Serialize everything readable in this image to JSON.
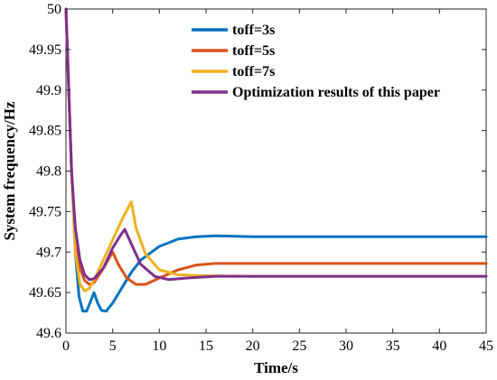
{
  "chart_data": {
    "type": "line",
    "title": "",
    "xlabel": "Time/s",
    "ylabel": "System frequency/Hz",
    "xlim": [
      0,
      45
    ],
    "ylim": [
      49.6,
      50
    ],
    "xticks": [
      0,
      5,
      10,
      15,
      20,
      25,
      30,
      35,
      40,
      45
    ],
    "yticks": [
      49.6,
      49.65,
      49.7,
      49.75,
      49.8,
      49.85,
      49.9,
      49.95,
      50
    ],
    "xtick_labels": [
      "0",
      "5",
      "10",
      "15",
      "20",
      "25",
      "30",
      "35",
      "40",
      "45"
    ],
    "ytick_labels": [
      "49.6",
      "49.65",
      "49.7",
      "49.75",
      "49.8",
      "49.85",
      "49.9",
      "49.95",
      "50"
    ],
    "grid": false,
    "legend_position": "top-right",
    "series": [
      {
        "name": "toff=3s",
        "color": "#0072BD",
        "points": [
          [
            0,
            50
          ],
          [
            0.3,
            49.9
          ],
          [
            0.6,
            49.8
          ],
          [
            1.0,
            49.7
          ],
          [
            1.4,
            49.645
          ],
          [
            1.8,
            49.627
          ],
          [
            2.2,
            49.627
          ],
          [
            2.6,
            49.638
          ],
          [
            3.0,
            49.65
          ],
          [
            3.4,
            49.637
          ],
          [
            3.8,
            49.628
          ],
          [
            4.3,
            49.627
          ],
          [
            5,
            49.637
          ],
          [
            6,
            49.656
          ],
          [
            7,
            49.675
          ],
          [
            8,
            49.69
          ],
          [
            10,
            49.707
          ],
          [
            12,
            49.716
          ],
          [
            14,
            49.719
          ],
          [
            16,
            49.72
          ],
          [
            20,
            49.719
          ],
          [
            30,
            49.719
          ],
          [
            45,
            49.719
          ]
        ]
      },
      {
        "name": "toff=5s",
        "color": "#D95319",
        "points": [
          [
            0,
            50
          ],
          [
            0.3,
            49.9
          ],
          [
            0.6,
            49.8
          ],
          [
            1.0,
            49.72
          ],
          [
            1.5,
            49.68
          ],
          [
            2.0,
            49.665
          ],
          [
            2.5,
            49.66
          ],
          [
            3.0,
            49.662
          ],
          [
            4.0,
            49.68
          ],
          [
            5.0,
            49.7
          ],
          [
            5.6,
            49.685
          ],
          [
            6.5,
            49.668
          ],
          [
            7.5,
            49.66
          ],
          [
            8.5,
            49.66
          ],
          [
            10,
            49.668
          ],
          [
            12,
            49.678
          ],
          [
            14,
            49.684
          ],
          [
            16,
            49.686
          ],
          [
            20,
            49.686
          ],
          [
            30,
            49.686
          ],
          [
            45,
            49.686
          ]
        ]
      },
      {
        "name": "toff=7s",
        "color": "#EDB120",
        "points": [
          [
            0,
            50
          ],
          [
            0.3,
            49.9
          ],
          [
            0.6,
            49.8
          ],
          [
            1.0,
            49.7
          ],
          [
            1.5,
            49.66
          ],
          [
            2.0,
            49.652
          ],
          [
            2.5,
            49.655
          ],
          [
            3.0,
            49.665
          ],
          [
            4.0,
            49.69
          ],
          [
            5.0,
            49.715
          ],
          [
            6.0,
            49.74
          ],
          [
            7.0,
            49.762
          ],
          [
            7.5,
            49.73
          ],
          [
            8.5,
            49.698
          ],
          [
            10,
            49.678
          ],
          [
            12,
            49.672
          ],
          [
            14,
            49.671
          ],
          [
            20,
            49.67
          ],
          [
            30,
            49.67
          ],
          [
            45,
            49.67
          ]
        ]
      },
      {
        "name": "Optimization results of this paper",
        "color": "#7E2F8E",
        "points": [
          [
            0,
            50
          ],
          [
            0.3,
            49.9
          ],
          [
            0.6,
            49.8
          ],
          [
            1.0,
            49.73
          ],
          [
            1.5,
            49.69
          ],
          [
            2.0,
            49.672
          ],
          [
            2.5,
            49.666
          ],
          [
            3.0,
            49.667
          ],
          [
            4.0,
            49.68
          ],
          [
            5.0,
            49.705
          ],
          [
            5.8,
            49.72
          ],
          [
            6.3,
            49.728
          ],
          [
            7.0,
            49.71
          ],
          [
            8.0,
            49.685
          ],
          [
            9.5,
            49.67
          ],
          [
            11,
            49.666
          ],
          [
            13,
            49.668
          ],
          [
            16,
            49.67
          ],
          [
            20,
            49.67
          ],
          [
            30,
            49.67
          ],
          [
            45,
            49.67
          ]
        ]
      }
    ]
  }
}
